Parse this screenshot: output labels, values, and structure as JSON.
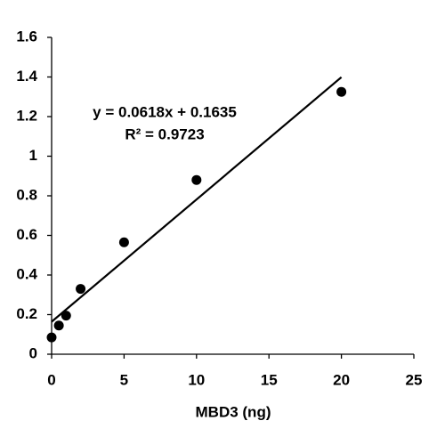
{
  "chart_data": {
    "type": "scatter",
    "x": [
      0,
      0.5,
      1,
      2,
      5,
      10,
      20
    ],
    "values": [
      0.085,
      0.145,
      0.195,
      0.33,
      0.565,
      0.88,
      1.325
    ],
    "color": "#000000",
    "xlabel": "MBD3 (ng)",
    "xlim": [
      0,
      25
    ],
    "xticks": [
      0,
      5,
      10,
      15,
      20,
      25
    ],
    "ylim": [
      0,
      1.6
    ],
    "yticks": [
      0,
      0.2,
      0.4,
      0.6,
      0.8,
      1,
      1.2,
      1.4,
      1.6
    ],
    "grid": false,
    "trendline": {
      "equation": "y = 0.0618x + 0.1635",
      "r_squared": "R² = 0.9723"
    }
  }
}
